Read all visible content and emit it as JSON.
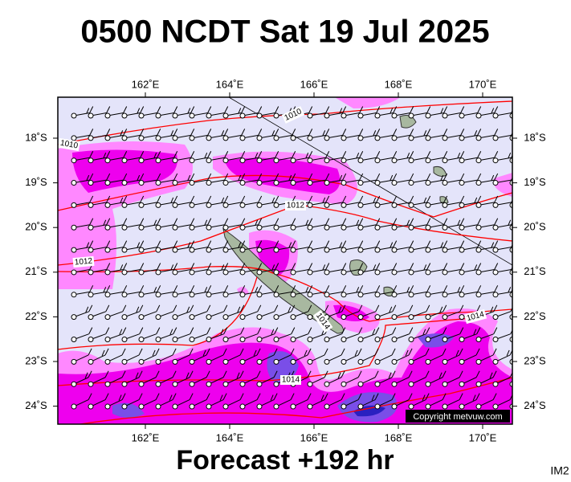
{
  "header": {
    "title": "0500 NCDT Sat 19 Jul 2025"
  },
  "map": {
    "longitude_labels": [
      "162˚E",
      "164˚E",
      "166˚E",
      "168˚E",
      "170˚E"
    ],
    "latitude_labels": [
      "18˚S",
      "19˚S",
      "20˚S",
      "21˚S",
      "22˚S",
      "23˚S",
      "24˚S"
    ],
    "isobar_labels": [
      "1010",
      "1010",
      "1012",
      "1012",
      "1014",
      "1014",
      "1014"
    ],
    "copyright": "Copyright metvuw.com"
  },
  "footer": {
    "forecast": "Forecast +192 hr",
    "code": "IM2"
  }
}
